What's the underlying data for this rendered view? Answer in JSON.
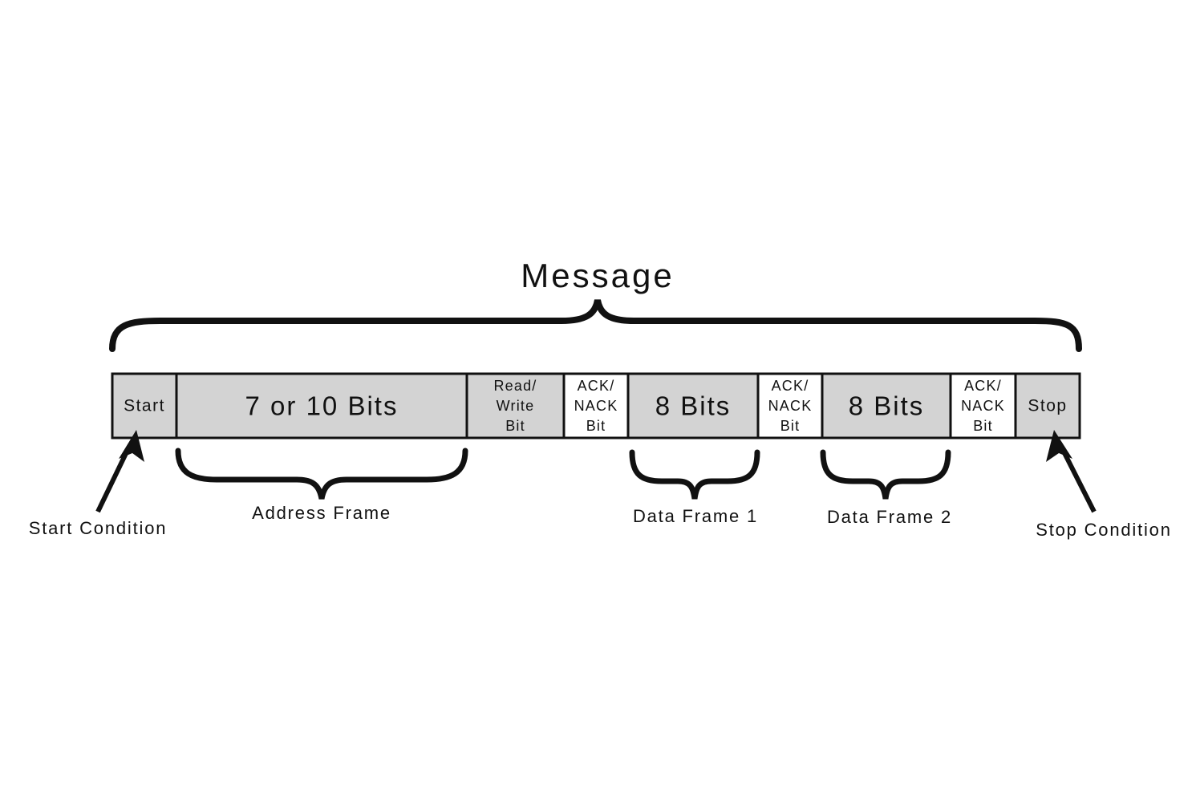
{
  "title": "Message",
  "colors": {
    "gray_cell": "#d3d3d3",
    "white_cell": "#ffffff",
    "stroke": "#111111"
  },
  "cells": [
    {
      "id": "start",
      "lines": [
        "Start"
      ],
      "fill": "gray",
      "size": "med"
    },
    {
      "id": "address-bits",
      "lines": [
        "7 or 10 Bits"
      ],
      "fill": "gray",
      "size": "big"
    },
    {
      "id": "read-write-bit",
      "lines": [
        "Read/",
        "Write",
        "Bit"
      ],
      "fill": "gray",
      "size": "small"
    },
    {
      "id": "ack-nack-1",
      "lines": [
        "ACK/",
        "NACK",
        "Bit"
      ],
      "fill": "white",
      "size": "small"
    },
    {
      "id": "data-bits-1",
      "lines": [
        "8 Bits"
      ],
      "fill": "gray",
      "size": "big"
    },
    {
      "id": "ack-nack-2",
      "lines": [
        "ACK/",
        "NACK",
        "Bit"
      ],
      "fill": "white",
      "size": "small"
    },
    {
      "id": "data-bits-2",
      "lines": [
        "8 Bits"
      ],
      "fill": "gray",
      "size": "big"
    },
    {
      "id": "ack-nack-3",
      "lines": [
        "ACK/",
        "NACK",
        "Bit"
      ],
      "fill": "white",
      "size": "small"
    },
    {
      "id": "stop",
      "lines": [
        "Stop"
      ],
      "fill": "gray",
      "size": "med"
    }
  ],
  "frames": {
    "address": "Address Frame",
    "data1": "Data Frame 1",
    "data2": "Data Frame 2"
  },
  "conditions": {
    "start": "Start Condition",
    "stop": "Stop Condition"
  }
}
